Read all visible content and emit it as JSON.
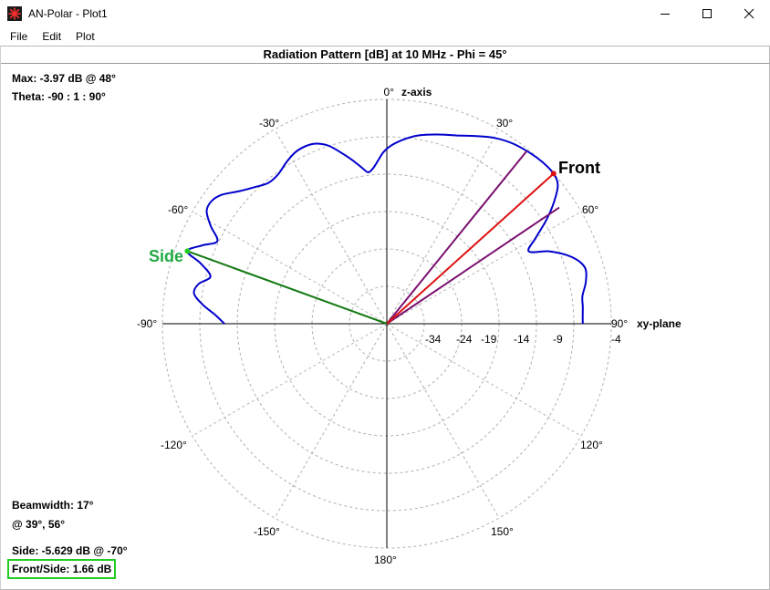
{
  "window": {
    "title": "AN-Polar - Plot1",
    "icon": "red-star-icon"
  },
  "menu": [
    "File",
    "Edit",
    "Plot"
  ],
  "plot": {
    "header": "Radiation Pattern [dB] at 10 MHz - Phi = 45°"
  },
  "info": {
    "max": "Max: -3.97 dB @ 48°",
    "theta": "Theta: -90 : 1 : 90°",
    "beamwidth": "Beamwidth: 17°",
    "beam_angles": "@ 39°, 56°",
    "side": "Side: -5.629 dB @ -70°",
    "front_side": "Front/Side: 1.66 dB"
  },
  "labels": {
    "front": "Front",
    "side": "Side",
    "z_axis": "z-axis",
    "xy_plane": "xy-plane"
  },
  "colors": {
    "pattern": "#0000cc",
    "front_line": "#dd1111",
    "beam_lines": "#7a1070",
    "side_line": "#137a13",
    "side_label": "#22aa44",
    "grid": "#b0b0b0",
    "fb_box": "#22cc22"
  },
  "chart_data": {
    "type": "polar",
    "angle_unit": "deg",
    "angle_ticks": [
      "0°",
      "30°",
      "60°",
      "90°",
      "120°",
      "150°",
      "180°",
      "-150°",
      "-120°",
      "-90°",
      "-60°",
      "-30°"
    ],
    "radial_ticks_db": [
      "-34",
      "-24",
      "-19",
      "-14",
      "-9",
      "-4"
    ],
    "max_db": -3.97,
    "max_angle": 48,
    "side_db": -5.629,
    "side_angle": -70,
    "beam_angles": [
      39,
      56
    ],
    "pattern": [
      [
        -90,
        -12.3
      ],
      [
        -87,
        -11.0
      ],
      [
        -84,
        -9.2
      ],
      [
        -81,
        -7.9
      ],
      [
        -78,
        -8.3
      ],
      [
        -75,
        -9.6
      ],
      [
        -72,
        -7.8
      ],
      [
        -70,
        -5.6
      ],
      [
        -67,
        -7.2
      ],
      [
        -64,
        -8.8
      ],
      [
        -61,
        -7.1
      ],
      [
        -58,
        -5.6
      ],
      [
        -55,
        -5.4
      ],
      [
        -52,
        -6.0
      ],
      [
        -48,
        -7.5
      ],
      [
        -44,
        -8.6
      ],
      [
        -40,
        -9.4
      ],
      [
        -36,
        -9.3
      ],
      [
        -32,
        -8.6
      ],
      [
        -28,
        -8.0
      ],
      [
        -24,
        -7.9
      ],
      [
        -21,
        -8.2
      ],
      [
        -18,
        -9.0
      ],
      [
        -15,
        -10.3
      ],
      [
        -12,
        -11.6
      ],
      [
        -9,
        -12.9
      ],
      [
        -7,
        -13.6
      ],
      [
        -5,
        -13.1
      ],
      [
        -3,
        -12.1
      ],
      [
        -1,
        -11.0
      ],
      [
        2,
        -10.0
      ],
      [
        6,
        -9.1
      ],
      [
        10,
        -8.4
      ],
      [
        15,
        -7.8
      ],
      [
        20,
        -7.2
      ],
      [
        25,
        -6.3
      ],
      [
        30,
        -5.3
      ],
      [
        35,
        -4.6
      ],
      [
        40,
        -4.2
      ],
      [
        44,
        -4.0
      ],
      [
        48,
        -3.97
      ],
      [
        51,
        -4.6
      ],
      [
        54,
        -6.4
      ],
      [
        57,
        -8.6
      ],
      [
        60,
        -11.0
      ],
      [
        63,
        -12.7
      ],
      [
        66,
        -10.2
      ],
      [
        70,
        -7.8
      ],
      [
        74,
        -6.5
      ],
      [
        78,
        -6.8
      ],
      [
        82,
        -7.6
      ],
      [
        85,
        -7.7
      ],
      [
        88,
        -7.8
      ],
      [
        90,
        -7.8
      ]
    ]
  }
}
